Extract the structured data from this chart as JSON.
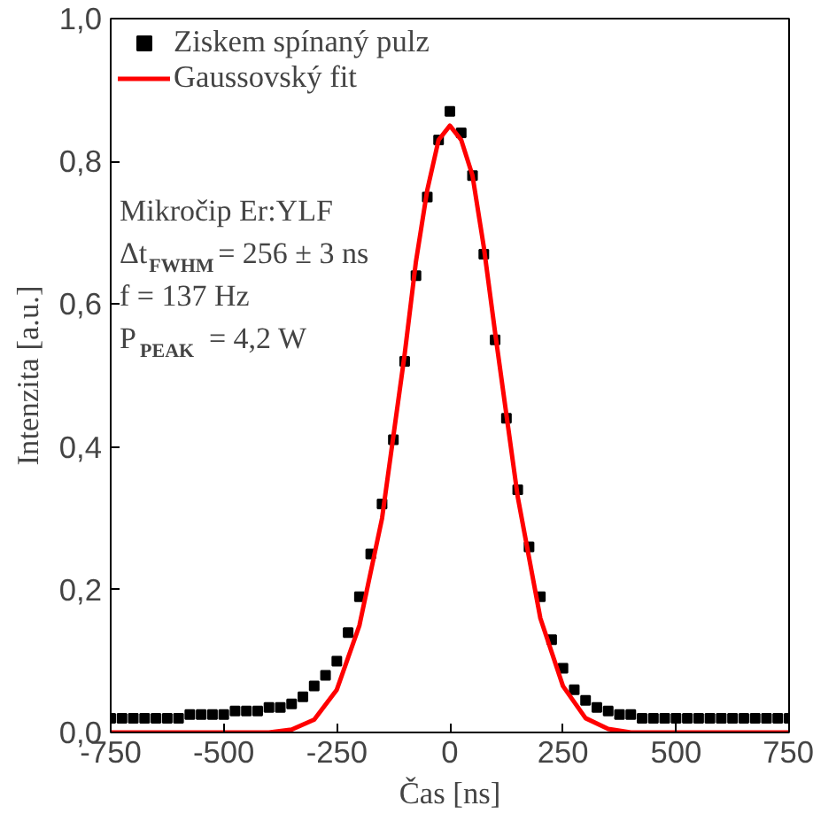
{
  "chart_data": {
    "type": "scatter",
    "xlabel": "Čas [ns]",
    "ylabel": "Intenzita [a.u.]",
    "xlim": [
      -750,
      750
    ],
    "xticks": [
      -750,
      -500,
      -250,
      0,
      250,
      500,
      750
    ],
    "ylim": [
      0,
      1.0
    ],
    "yticks": [
      {
        "value": 0,
        "label": "0,0"
      },
      {
        "value": 0.2,
        "label": "0,2"
      },
      {
        "value": 0.4,
        "label": "0,4"
      },
      {
        "value": 0.6,
        "label": "0,6"
      },
      {
        "value": 0.8,
        "label": "0,8"
      },
      {
        "value": 1.0,
        "label": "1,0"
      }
    ],
    "grid": false,
    "legend": "top left",
    "series": [
      {
        "name": "Ziskem spínaný pulz",
        "marker": "square",
        "color": "#000000",
        "x": [
          -750,
          -725,
          -700,
          -675,
          -650,
          -625,
          -600,
          -575,
          -550,
          -525,
          -500,
          -475,
          -450,
          -425,
          -400,
          -375,
          -350,
          -325,
          -300,
          -275,
          -250,
          -225,
          -200,
          -175,
          -150,
          -125,
          -100,
          -75,
          -50,
          -25,
          0,
          25,
          50,
          75,
          100,
          125,
          150,
          175,
          200,
          225,
          250,
          275,
          300,
          325,
          350,
          375,
          400,
          425,
          450,
          475,
          500,
          525,
          550,
          575,
          600,
          625,
          650,
          675,
          700,
          725,
          750
        ],
        "values": [
          0.02,
          0.02,
          0.02,
          0.02,
          0.02,
          0.02,
          0.02,
          0.025,
          0.025,
          0.025,
          0.025,
          0.03,
          0.03,
          0.03,
          0.035,
          0.035,
          0.04,
          0.05,
          0.065,
          0.08,
          0.1,
          0.14,
          0.19,
          0.25,
          0.32,
          0.41,
          0.52,
          0.64,
          0.75,
          0.83,
          0.87,
          0.84,
          0.78,
          0.67,
          0.55,
          0.44,
          0.34,
          0.26,
          0.19,
          0.13,
          0.09,
          0.06,
          0.045,
          0.035,
          0.03,
          0.025,
          0.025,
          0.02,
          0.02,
          0.02,
          0.02,
          0.02,
          0.02,
          0.02,
          0.02,
          0.02,
          0.02,
          0.02,
          0.02,
          0.02,
          0.02
        ]
      },
      {
        "name": "Gaussovský fit",
        "type": "line",
        "color": "#ff0000",
        "line_style": "solid",
        "x": [
          -750,
          -400,
          -350,
          -300,
          -250,
          -200,
          -150,
          -100,
          -75,
          -50,
          -25,
          0,
          25,
          50,
          75,
          100,
          150,
          200,
          250,
          300,
          350,
          400,
          750
        ],
        "values": [
          0,
          0,
          0.004,
          0.018,
          0.06,
          0.15,
          0.3,
          0.53,
          0.66,
          0.76,
          0.83,
          0.85,
          0.83,
          0.78,
          0.68,
          0.56,
          0.33,
          0.16,
          0.065,
          0.02,
          0.005,
          0,
          0
        ]
      }
    ],
    "annotations": [
      "Mikročip Er:YLF",
      "Δt$_{FWHM}$= 256 ± 3 ns",
      "f = 137 Hz",
      "P$_{PEAK}$ = 4,2 W"
    ]
  }
}
